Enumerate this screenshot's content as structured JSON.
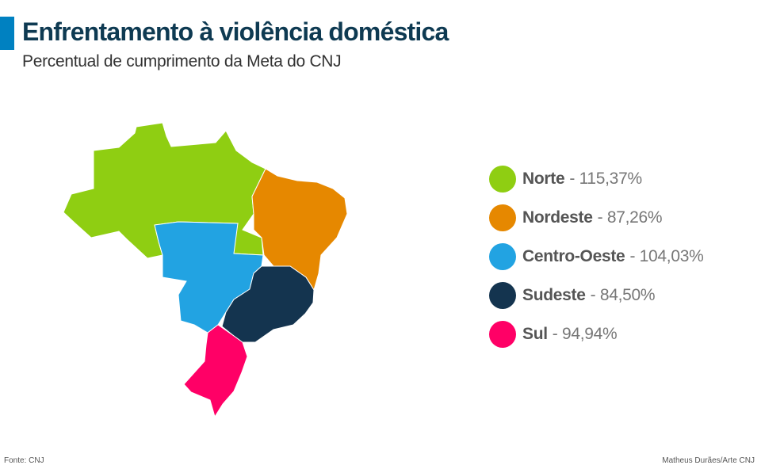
{
  "header": {
    "title": "Enfrentamento à violência doméstica",
    "subtitle": "Percentual de cumprimento da Meta do CNJ",
    "accent_color": "#0081c1"
  },
  "legend": [
    {
      "region": "Norte",
      "value": "- 115,37%",
      "color": "#8fce12"
    },
    {
      "region": "Nordeste",
      "value": "- 87,26%",
      "color": "#e68800"
    },
    {
      "region": "Centro-Oeste",
      "value": "- 104,03%",
      "color": "#22a3e2"
    },
    {
      "region": "Sudeste",
      "value": "- 84,50%",
      "color": "#14344f"
    },
    {
      "region": "Sul",
      "value": "- 94,94%",
      "color": "#ff0066"
    }
  ],
  "footer": {
    "source": "Fonte: CNJ",
    "credit": "Matheus Durães/Arte CNJ"
  }
}
